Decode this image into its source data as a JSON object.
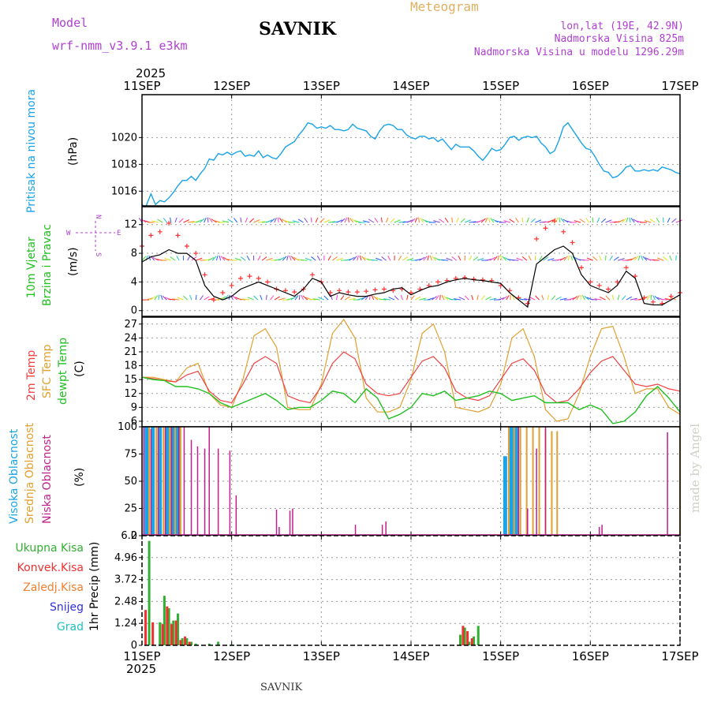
{
  "header": {
    "model_label": "Model",
    "model_name": "wrf-nmm_v3.9.1 e3km",
    "station": "SAVNIK",
    "product": "Meteogram",
    "lonlat": "lon,lat (19E, 42.9N)",
    "altitude": "Nadmorska Visina 825m",
    "model_altitude": "Nadmorska Visina u modelu 1296.29m",
    "footer_station": "SAVNIK",
    "credit": "made by Angel"
  },
  "colors": {
    "pressure": "#1aa3e8",
    "wind_mean": "#000000",
    "gust": "#ff3030",
    "t2m": "#f04040",
    "sfc": "#e0a030",
    "dewpt": "#20c020",
    "high_cloud": "#1aa3e8",
    "mid_cloud": "#e0a030",
    "low_cloud": "#c0208c",
    "total_precip": "#30b030",
    "conv_precip": "#f03030",
    "frz_precip": "#f08030",
    "snow": "#3030e0",
    "hail": "#20c0c0"
  },
  "time_axis": {
    "year": "2025",
    "labels": [
      "11SEP",
      "12SEP",
      "13SEP",
      "14SEP",
      "15SEP",
      "16SEP",
      "17SEP"
    ]
  },
  "chart_data": [
    {
      "type": "line",
      "title": "Pritisak na nivou mora",
      "ylabel": "(hPa)",
      "ylim": [
        1014.9,
        1023.2
      ],
      "yticks": [
        "1016",
        "1018",
        "1020"
      ],
      "ytick_values": [
        1016,
        1018,
        1020
      ],
      "x": [
        0.0,
        0.04,
        0.1,
        0.15,
        0.2,
        0.25,
        0.3,
        0.35,
        0.4,
        0.45,
        0.5,
        0.55,
        0.6,
        0.65,
        0.7,
        0.75,
        0.8,
        0.85,
        0.9,
        0.95,
        1.0,
        1.05,
        1.1,
        1.15,
        1.2,
        1.25,
        1.3,
        1.35,
        1.4,
        1.45,
        1.5,
        1.55,
        1.6,
        1.65,
        1.7,
        1.75,
        1.8,
        1.85,
        1.9,
        1.95,
        2.0,
        2.05,
        2.1,
        2.15,
        2.2,
        2.25,
        2.3,
        2.35,
        2.4,
        2.45,
        2.5,
        2.55,
        2.6,
        2.65,
        2.7,
        2.75,
        2.8,
        2.85,
        2.9,
        2.95,
        3.0,
        3.05,
        3.1,
        3.15,
        3.2,
        3.25,
        3.3,
        3.35,
        3.4,
        3.45,
        3.5,
        3.55,
        3.6,
        3.65,
        3.7,
        3.75,
        3.8,
        3.85,
        3.9,
        3.95,
        4.0,
        4.05,
        4.1,
        4.15,
        4.2,
        4.25,
        4.3,
        4.35,
        4.4,
        4.45,
        4.5,
        4.55,
        4.6,
        4.65,
        4.7,
        4.75,
        4.8,
        4.85,
        4.9,
        4.95,
        5.0,
        5.05,
        5.1,
        5.15,
        5.2,
        5.25,
        5.3,
        5.35,
        5.4,
        5.45,
        5.5,
        5.55,
        5.6,
        5.65,
        5.7,
        5.75,
        5.8,
        5.85,
        5.9,
        5.95,
        6.0
      ],
      "values": [
        1015.0,
        1014.8,
        1015.8,
        1015.0,
        1015.3,
        1015.2,
        1015.5,
        1015.9,
        1016.4,
        1016.8,
        1016.8,
        1017.1,
        1016.8,
        1017.3,
        1017.7,
        1018.4,
        1018.3,
        1018.8,
        1018.7,
        1018.9,
        1018.7,
        1018.9,
        1019.0,
        1018.6,
        1018.7,
        1018.6,
        1019.0,
        1018.5,
        1018.7,
        1018.5,
        1018.4,
        1018.8,
        1019.3,
        1019.5,
        1019.7,
        1020.2,
        1020.6,
        1021.1,
        1021.0,
        1020.7,
        1020.8,
        1020.7,
        1020.9,
        1020.6,
        1020.6,
        1020.5,
        1020.6,
        1021.0,
        1020.7,
        1020.6,
        1020.5,
        1020.1,
        1019.9,
        1020.5,
        1020.9,
        1021.0,
        1020.9,
        1020.6,
        1020.6,
        1020.2,
        1020.0,
        1019.9,
        1020.1,
        1020.1,
        1019.9,
        1020.0,
        1019.7,
        1019.9,
        1019.5,
        1019.1,
        1019.5,
        1019.3,
        1019.3,
        1019.3,
        1019.0,
        1018.6,
        1018.3,
        1018.7,
        1019.2,
        1019.0,
        1019.1,
        1019.5,
        1020.0,
        1020.1,
        1019.8,
        1020.0,
        1020.1,
        1020.0,
        1020.1,
        1019.6,
        1019.3,
        1018.8,
        1019.0,
        1019.8,
        1020.8,
        1021.1,
        1020.6,
        1020.1,
        1019.6,
        1019.2,
        1019.1,
        1018.6,
        1018.0,
        1017.5,
        1017.4,
        1017.0,
        1017.1,
        1017.4,
        1017.8,
        1017.9,
        1017.5,
        1017.5,
        1017.6,
        1017.5,
        1017.6,
        1017.5,
        1017.8,
        1017.7,
        1017.6,
        1017.4,
        1017.3
      ]
    },
    {
      "type": "line",
      "title": "10m Vjetar Brzina i Pravac",
      "ylabel": "(m/s)",
      "ylim": [
        -0.8,
        14.5
      ],
      "yticks": [
        "0",
        "4",
        "8",
        "12"
      ],
      "ytick_values": [
        0,
        4,
        8,
        12
      ],
      "compass": [
        "N",
        "S",
        "E",
        "W"
      ],
      "barb_levels": [
        1.5,
        7.0,
        12.3
      ],
      "x": [
        0.0,
        0.1,
        0.2,
        0.3,
        0.4,
        0.5,
        0.6,
        0.7,
        0.8,
        0.9,
        1.0,
        1.1,
        1.2,
        1.3,
        1.4,
        1.5,
        1.6,
        1.7,
        1.8,
        1.9,
        2.0,
        2.1,
        2.2,
        2.3,
        2.4,
        2.5,
        2.6,
        2.7,
        2.8,
        2.9,
        3.0,
        3.1,
        3.2,
        3.3,
        3.4,
        3.5,
        3.6,
        3.7,
        3.8,
        3.9,
        4.0,
        4.1,
        4.2,
        4.3,
        4.4,
        4.5,
        4.6,
        4.7,
        4.8,
        4.9,
        5.0,
        5.1,
        5.2,
        5.3,
        5.4,
        5.5,
        5.6,
        5.7,
        5.8,
        5.9,
        6.0
      ],
      "series": [
        {
          "name": "speed",
          "values": [
            6.8,
            7.5,
            7.8,
            8.5,
            8.0,
            8.0,
            7.0,
            3.5,
            2.0,
            1.5,
            2.0,
            3.0,
            3.5,
            4.0,
            3.5,
            3.0,
            2.5,
            2.0,
            3.0,
            4.5,
            4.0,
            2.0,
            2.5,
            2.2,
            2.0,
            2.0,
            2.3,
            2.5,
            3.0,
            3.2,
            2.2,
            2.8,
            3.3,
            3.5,
            4.0,
            4.3,
            4.5,
            4.3,
            4.2,
            4.0,
            3.8,
            2.5,
            1.5,
            0.5,
            6.5,
            7.5,
            8.5,
            9.0,
            8.0,
            5.0,
            3.5,
            3.0,
            2.5,
            3.5,
            5.5,
            4.5,
            1.0,
            0.8,
            0.8,
            1.5,
            2.2
          ]
        },
        {
          "name": "gust",
          "values": [
            9.0,
            10.5,
            11.0,
            12.2,
            10.5,
            9.0,
            8.0,
            5.0,
            1.5,
            2.5,
            3.5,
            4.5,
            4.8,
            4.5,
            4.0,
            3.0,
            2.8,
            2.6,
            3.0,
            5.0,
            4.0,
            2.5,
            2.8,
            2.6,
            2.6,
            2.7,
            2.9,
            3.0,
            2.8,
            3.0,
            2.5,
            3.0,
            3.5,
            4.0,
            4.2,
            4.5,
            4.6,
            4.4,
            4.3,
            4.2,
            3.5,
            2.8,
            1.8,
            1.0,
            10.0,
            11.5,
            12.5,
            11.0,
            9.5,
            6.0,
            4.0,
            3.5,
            3.0,
            4.0,
            6.0,
            4.8,
            1.8,
            1.2,
            1.0,
            2.0,
            2.5
          ]
        }
      ]
    },
    {
      "type": "line",
      "title": "2m Temp / SFC Temp / dewpt Temp",
      "ylabel": "(C)",
      "ylim": [
        4.8,
        28.5
      ],
      "yticks": [
        "6",
        "9",
        "12",
        "15",
        "18",
        "21",
        "24",
        "27"
      ],
      "ytick_values": [
        6,
        9,
        12,
        15,
        18,
        21,
        24,
        27
      ],
      "x": [
        0.0,
        0.125,
        0.25,
        0.375,
        0.5,
        0.625,
        0.75,
        0.875,
        1.0,
        1.125,
        1.25,
        1.375,
        1.5,
        1.625,
        1.75,
        1.875,
        2.0,
        2.125,
        2.25,
        2.375,
        2.5,
        2.625,
        2.75,
        2.875,
        3.0,
        3.125,
        3.25,
        3.375,
        3.5,
        3.625,
        3.75,
        3.875,
        4.0,
        4.125,
        4.25,
        4.375,
        4.5,
        4.625,
        4.75,
        4.875,
        5.0,
        5.125,
        5.25,
        5.375,
        5.5,
        5.625,
        5.75,
        5.875,
        6.0
      ],
      "series": [
        {
          "name": "2m Temp",
          "values": [
            15.5,
            15.2,
            14.8,
            14.5,
            16.0,
            16.8,
            12.5,
            10.5,
            10.0,
            14.0,
            18.5,
            20.0,
            18.5,
            11.5,
            10.5,
            10.0,
            13.5,
            18.5,
            21.0,
            19.5,
            14.0,
            12.0,
            11.5,
            12.0,
            15.5,
            19.0,
            20.0,
            17.5,
            12.5,
            11.0,
            10.5,
            11.5,
            15.0,
            18.5,
            19.5,
            17.0,
            12.0,
            10.0,
            10.5,
            13.0,
            16.5,
            19.0,
            20.0,
            17.0,
            14.0,
            13.5,
            14.0,
            13.0,
            12.5
          ]
        },
        {
          "name": "SFC Temp",
          "values": [
            15.5,
            15.5,
            15.0,
            14.5,
            17.5,
            18.5,
            12.0,
            9.5,
            9.0,
            15.0,
            24.5,
            26.0,
            22.0,
            9.0,
            8.5,
            8.5,
            14.0,
            25.0,
            28.0,
            24.0,
            11.0,
            8.0,
            8.0,
            9.0,
            15.0,
            25.0,
            27.0,
            21.0,
            9.0,
            8.5,
            8.0,
            9.0,
            14.0,
            24.0,
            26.0,
            20.0,
            8.5,
            6.0,
            6.5,
            12.0,
            20.0,
            26.0,
            26.5,
            20.0,
            12.0,
            13.0,
            13.0,
            9.0,
            7.5
          ]
        },
        {
          "name": "dewpt Temp",
          "values": [
            15.5,
            15.0,
            14.8,
            13.5,
            13.5,
            13.0,
            12.0,
            10.0,
            9.0,
            10.0,
            11.0,
            12.0,
            10.5,
            8.5,
            9.0,
            9.0,
            10.5,
            12.5,
            12.0,
            10.0,
            13.0,
            11.0,
            6.5,
            7.5,
            9.0,
            12.0,
            11.5,
            12.5,
            10.5,
            11.0,
            11.5,
            12.5,
            12.0,
            10.5,
            11.0,
            11.5,
            10.0,
            10.0,
            10.0,
            8.5,
            9.5,
            8.5,
            5.5,
            6.0,
            8.0,
            11.5,
            13.5,
            11.0,
            8.0
          ]
        }
      ]
    },
    {
      "type": "bar",
      "title": "Visoka / Srednja / Niska Oblacnost",
      "ylabel": "(%)",
      "ylim": [
        0,
        100
      ],
      "yticks": [
        "0",
        "25",
        "50",
        "75",
        "100"
      ],
      "ytick_values": [
        0,
        25,
        50,
        75,
        100
      ],
      "series": [
        {
          "name": "Visoka Oblacnost",
          "x": [
            0.05,
            0.12,
            0.2,
            0.28,
            0.34,
            0.4,
            4.05,
            4.12,
            4.18
          ],
          "values": [
            100,
            100,
            100,
            100,
            100,
            100,
            73,
            100,
            100
          ]
        },
        {
          "name": "Srednja Oblacnost",
          "x": [
            0.08,
            0.16,
            0.24,
            0.31,
            0.37,
            0.43,
            4.09,
            4.15,
            4.22,
            4.29,
            4.36,
            4.43,
            4.5,
            4.57,
            4.63,
            6.0
          ],
          "values": [
            100,
            100,
            100,
            100,
            100,
            100,
            100,
            100,
            100,
            100,
            100,
            100,
            98,
            96,
            96,
            100
          ]
        },
        {
          "name": "Niska Oblacnost",
          "x": [
            0.02,
            0.1,
            0.18,
            0.26,
            0.33,
            0.41,
            0.47,
            0.55,
            0.62,
            0.7,
            0.75,
            0.85,
            0.98,
            1.05,
            1.5,
            1.53,
            1.65,
            1.68,
            2.38,
            2.68,
            2.72,
            4.2,
            4.3,
            4.4,
            4.5,
            5.1,
            5.13,
            5.86
          ],
          "values": [
            100,
            98,
            100,
            100,
            100,
            100,
            100,
            88,
            82,
            80,
            100,
            80,
            78,
            37,
            24,
            8,
            23,
            25,
            10,
            10,
            13,
            100,
            25,
            80,
            100,
            8,
            10,
            95
          ]
        }
      ]
    },
    {
      "type": "bar",
      "title": "Ukupna Kisa / Konvek.Kisa / Zaledj.Kisa / Snijeg / Grad",
      "ylabel": "1hr Precip (mm)",
      "ylim": [
        0,
        6.2
      ],
      "yticks": [
        "0",
        "1.24",
        "2.48",
        "3.72",
        "4.96",
        "6.2"
      ],
      "ytick_values": [
        0,
        1.24,
        2.48,
        3.72,
        4.96,
        6.2
      ],
      "series": [
        {
          "name": "Ukupna Kisa",
          "x": [
            0.08,
            0.2,
            0.25,
            0.3,
            0.35,
            0.4,
            0.45,
            0.5,
            0.55,
            0.6,
            0.75,
            0.85,
            1.0,
            3.55,
            3.6,
            3.65,
            3.7,
            3.75
          ],
          "values": [
            5.9,
            1.3,
            2.8,
            2.1,
            1.4,
            1.8,
            0.4,
            0.4,
            0.2,
            0.1,
            0.1,
            0.2,
            0.05,
            0.6,
            1.0,
            0.2,
            0.5,
            1.1
          ]
        },
        {
          "name": "Konvek.Kisa",
          "x": [
            0.04,
            0.12,
            0.23,
            0.28,
            0.33,
            0.38,
            0.43,
            0.48,
            0.53,
            3.58,
            3.63,
            3.68
          ],
          "values": [
            2.0,
            1.3,
            1.2,
            2.2,
            1.2,
            1.4,
            0.3,
            0.5,
            0.2,
            1.1,
            0.8,
            0.4
          ]
        }
      ]
    }
  ],
  "panel_labels": {
    "pressure": [
      "Pritisak na nivou mora"
    ],
    "wind": [
      "10m Vjetar",
      "Brzina i Pravac"
    ],
    "temp": [
      "2m Temp",
      "SFC Temp",
      "dewpt Temp"
    ],
    "cloud": [
      "Visoka Oblacnost",
      "Srednja Oblacnost",
      "Niska Oblacnost"
    ],
    "precip": [
      "Ukupna Kisa",
      "Konvek.Kisa",
      "Zaledj.Kisa",
      "Snijeg",
      "Grad"
    ]
  }
}
